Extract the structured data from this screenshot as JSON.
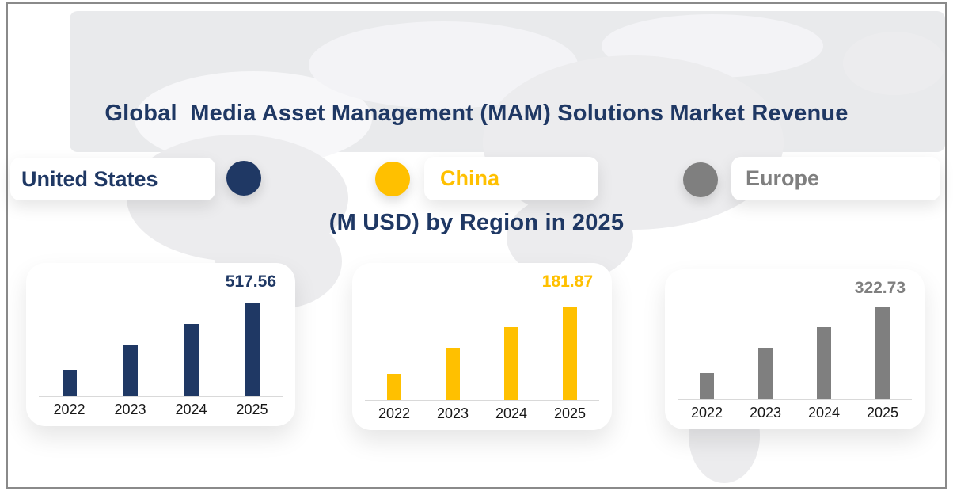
{
  "title": {
    "line1": "Global  Media Asset Management (MAM) Solutions Market Revenue",
    "line2": "(M USD) by Region in 2025"
  },
  "colors": {
    "title": "#1F3864",
    "united_states": "#1F3864",
    "china": "#FFC000",
    "europe": "#7F7F7F"
  },
  "legend": [
    {
      "label": "United States",
      "color": "#1F3864"
    },
    {
      "label": "China",
      "color": "#FFC000"
    },
    {
      "label": "Europe",
      "color": "#7F7F7F"
    }
  ],
  "chart_data": [
    {
      "type": "bar",
      "region": "United States",
      "categories": [
        "2022",
        "2023",
        "2024",
        "2025"
      ],
      "values": [
        146,
        288,
        403,
        517.56
      ],
      "value_label": "517.56",
      "labeled_category": "2025",
      "color": "#1F3864",
      "unit": "M USD",
      "grid": false,
      "y_axis_visible": false
    },
    {
      "type": "bar",
      "region": "China",
      "categories": [
        "2022",
        "2023",
        "2024",
        "2025"
      ],
      "values": [
        52,
        102,
        143,
        181.87
      ],
      "value_label": "181.87",
      "labeled_category": "2025",
      "color": "#FFC000",
      "unit": "M USD",
      "grid": false,
      "y_axis_visible": false
    },
    {
      "type": "bar",
      "region": "Europe",
      "categories": [
        "2022",
        "2023",
        "2024",
        "2025"
      ],
      "values": [
        91,
        179,
        251,
        322.73
      ],
      "value_label": "322.73",
      "labeled_category": "2025",
      "color": "#7F7F7F",
      "unit": "M USD",
      "grid": false,
      "y_axis_visible": false
    }
  ]
}
